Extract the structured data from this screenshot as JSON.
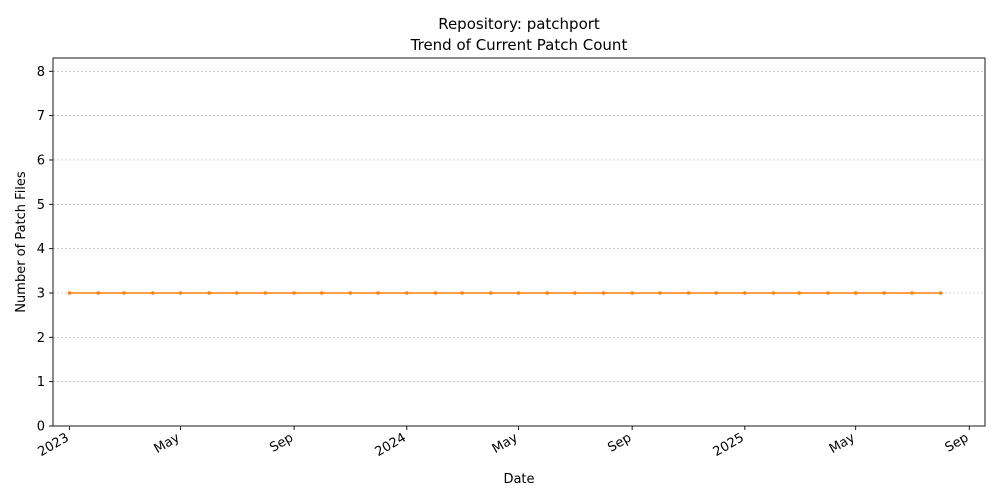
{
  "chart_data": {
    "type": "line",
    "title": "Repository: patchport",
    "subtitle": "Trend of Current Patch Count",
    "xlabel": "Date",
    "ylabel": "Number of Patch Files",
    "x": [
      "2023-01-01",
      "2023-02-01",
      "2023-03-01",
      "2023-04-01",
      "2023-05-01",
      "2023-06-01",
      "2023-07-01",
      "2023-08-01",
      "2023-09-01",
      "2023-10-01",
      "2023-11-01",
      "2023-12-01",
      "2024-01-01",
      "2024-02-01",
      "2024-03-01",
      "2024-04-01",
      "2024-05-01",
      "2024-06-01",
      "2024-07-01",
      "2024-08-01",
      "2024-09-01",
      "2024-10-01",
      "2024-11-01",
      "2024-12-01",
      "2025-01-01",
      "2025-02-01",
      "2025-03-01",
      "2025-04-01",
      "2025-05-01",
      "2025-06-01",
      "2025-07-01",
      "2025-08-01"
    ],
    "series": [
      {
        "values": [
          3,
          3,
          3,
          3,
          3,
          3,
          3,
          3,
          3,
          3,
          3,
          3,
          3,
          3,
          3,
          3,
          3,
          3,
          3,
          3,
          3,
          3,
          3,
          3,
          3,
          3,
          3,
          3,
          3,
          3,
          3,
          3
        ],
        "color": "#ff7f0e"
      }
    ],
    "ylim": [
      0,
      8.3
    ],
    "xlim": [
      "2022-12-14",
      "2025-09-18"
    ],
    "yticks": [
      0,
      1,
      2,
      3,
      4,
      5,
      6,
      7,
      8
    ],
    "xticks": [
      {
        "date": "2023-01-01",
        "label": "2023"
      },
      {
        "date": "2023-05-01",
        "label": "May"
      },
      {
        "date": "2023-09-01",
        "label": "Sep"
      },
      {
        "date": "2024-01-01",
        "label": "2024"
      },
      {
        "date": "2024-05-01",
        "label": "May"
      },
      {
        "date": "2024-09-01",
        "label": "Sep"
      },
      {
        "date": "2025-01-01",
        "label": "2025"
      },
      {
        "date": "2025-05-01",
        "label": "May"
      },
      {
        "date": "2025-09-01",
        "label": "Sep"
      }
    ],
    "grid": "y-dashed",
    "legend": "none"
  }
}
